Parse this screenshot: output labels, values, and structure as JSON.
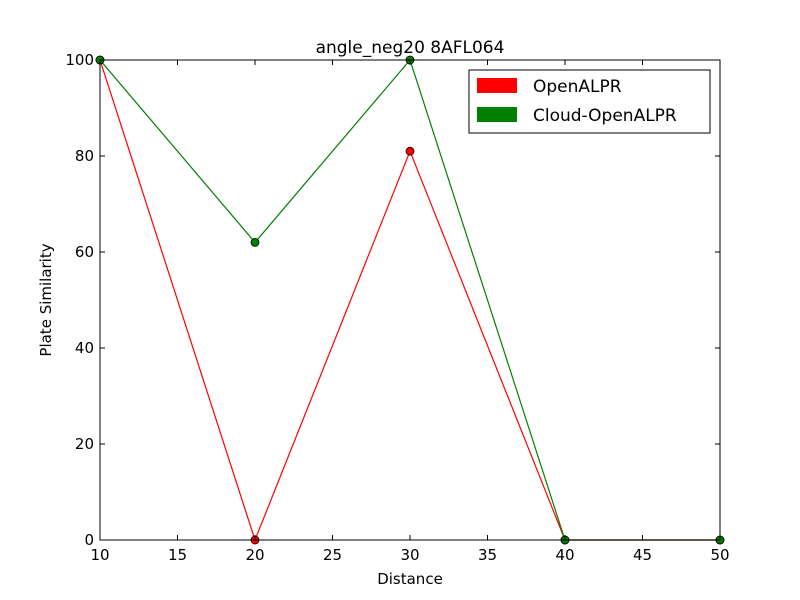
{
  "chart_data": {
    "type": "line",
    "title": "angle_neg20 8AFL064",
    "xlabel": "Distance",
    "ylabel": "Plate Similarity",
    "xlim": [
      10,
      50
    ],
    "ylim": [
      0,
      100
    ],
    "xticks": [
      10,
      15,
      20,
      25,
      30,
      35,
      40,
      45,
      50
    ],
    "yticks": [
      0,
      20,
      40,
      60,
      80,
      100
    ],
    "grid": false,
    "legend_position": "top-right",
    "x": [
      10,
      20,
      30,
      40,
      50
    ],
    "series": [
      {
        "name": "OpenALPR",
        "color": "#ff0000",
        "values": [
          100,
          0,
          81,
          0,
          0
        ]
      },
      {
        "name": "Cloud-OpenALPR",
        "color": "#008000",
        "values": [
          100,
          62,
          100,
          0,
          0
        ]
      }
    ]
  }
}
